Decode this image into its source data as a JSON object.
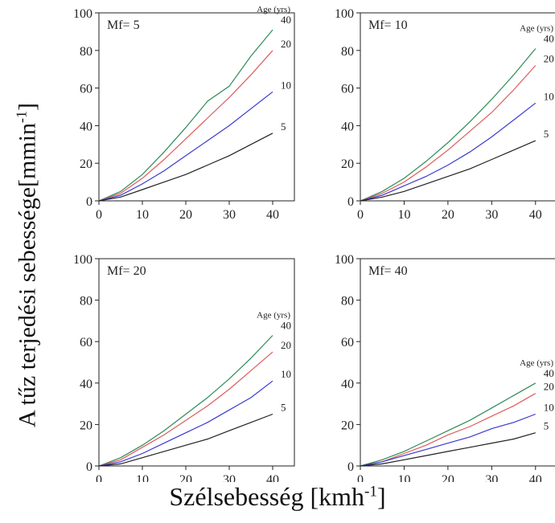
{
  "figure": {
    "ylabel_text": "A tűz terjedési sebessége[mmin",
    "ylabel_sup": "-1",
    "ylabel_close": "]",
    "xlabel_text": "Szélsebesség [kmh",
    "xlabel_sup": "-1",
    "xlabel_close": "]"
  },
  "chart_data": [
    {
      "type": "line",
      "panel_label": "Mf= 5",
      "legend_title": "Age (yrs)",
      "x": [
        0,
        5,
        10,
        15,
        20,
        25,
        30,
        35,
        40
      ],
      "xlim": [
        0,
        45
      ],
      "ylim": [
        0,
        100
      ],
      "xticks": [
        0,
        10,
        20,
        30,
        40
      ],
      "yticks": [
        0,
        20,
        40,
        60,
        80,
        100
      ],
      "series": [
        {
          "name": "40",
          "color": "#2e8b57",
          "values": [
            0,
            5,
            14,
            26,
            39,
            53,
            61,
            77,
            91
          ]
        },
        {
          "name": "20",
          "color": "#e05a5a",
          "values": [
            0,
            4,
            12,
            22,
            33,
            44,
            55,
            67,
            80
          ]
        },
        {
          "name": "10",
          "color": "#3a3acf",
          "values": [
            0,
            3,
            9,
            16,
            24,
            32,
            40,
            49,
            58
          ]
        },
        {
          "name": "5",
          "color": "#222222",
          "values": [
            0,
            2,
            6,
            10,
            14,
            19,
            24,
            30,
            36
          ]
        }
      ]
    },
    {
      "type": "line",
      "panel_label": "Mf= 10",
      "legend_title": "Age (yrs)",
      "x": [
        0,
        5,
        10,
        15,
        20,
        25,
        30,
        35,
        40
      ],
      "xlim": [
        0,
        45
      ],
      "ylim": [
        0,
        100
      ],
      "xticks": [
        0,
        10,
        20,
        30,
        40
      ],
      "yticks": [
        0,
        20,
        40,
        60,
        80,
        100
      ],
      "series": [
        {
          "name": "40",
          "color": "#2e8b57",
          "values": [
            0,
            5,
            12,
            21,
            31,
            42,
            54,
            67,
            81
          ]
        },
        {
          "name": "20",
          "color": "#e05a5a",
          "values": [
            0,
            4,
            10,
            18,
            27,
            37,
            47,
            59,
            72
          ]
        },
        {
          "name": "10",
          "color": "#3a3acf",
          "values": [
            0,
            3,
            8,
            13,
            19,
            26,
            34,
            43,
            52
          ]
        },
        {
          "name": "5",
          "color": "#222222",
          "values": [
            0,
            2,
            5,
            9,
            13,
            17,
            22,
            27,
            32
          ]
        }
      ]
    },
    {
      "type": "line",
      "panel_label": "Mf= 20",
      "legend_title": "Age (yrs)",
      "x": [
        0,
        5,
        10,
        15,
        20,
        25,
        30,
        35,
        40
      ],
      "xlim": [
        0,
        45
      ],
      "ylim": [
        0,
        100
      ],
      "xticks": [
        0,
        10,
        20,
        30,
        40
      ],
      "yticks": [
        0,
        20,
        40,
        60,
        80,
        100
      ],
      "series": [
        {
          "name": "40",
          "color": "#2e8b57",
          "values": [
            0,
            4,
            10,
            17,
            25,
            33,
            42,
            52,
            63
          ]
        },
        {
          "name": "20",
          "color": "#e05a5a",
          "values": [
            0,
            3,
            9,
            15,
            22,
            29,
            37,
            46,
            55
          ]
        },
        {
          "name": "10",
          "color": "#3a3acf",
          "values": [
            0,
            2,
            6,
            11,
            16,
            21,
            27,
            33,
            41
          ]
        },
        {
          "name": "5",
          "color": "#222222",
          "values": [
            0,
            1,
            4,
            7,
            10,
            13,
            17,
            21,
            25
          ]
        }
      ]
    },
    {
      "type": "line",
      "panel_label": "Mf= 40",
      "legend_title": "Age (yrs)",
      "x": [
        0,
        5,
        10,
        15,
        20,
        25,
        30,
        35,
        40
      ],
      "xlim": [
        0,
        45
      ],
      "ylim": [
        0,
        100
      ],
      "xticks": [
        0,
        10,
        20,
        30,
        40
      ],
      "yticks": [
        0,
        20,
        40,
        60,
        80,
        100
      ],
      "series": [
        {
          "name": "40",
          "color": "#2e8b57",
          "values": [
            0,
            3,
            7,
            12,
            17,
            22,
            28,
            34,
            40
          ]
        },
        {
          "name": "20",
          "color": "#e05a5a",
          "values": [
            0,
            2,
            6,
            10,
            15,
            19,
            24,
            29,
            35
          ]
        },
        {
          "name": "10",
          "color": "#3a3acf",
          "values": [
            0,
            2,
            5,
            8,
            11,
            14,
            18,
            21,
            25
          ]
        },
        {
          "name": "5",
          "color": "#222222",
          "values": [
            0,
            1,
            3,
            5,
            7,
            9,
            11,
            13,
            16
          ]
        }
      ]
    }
  ]
}
